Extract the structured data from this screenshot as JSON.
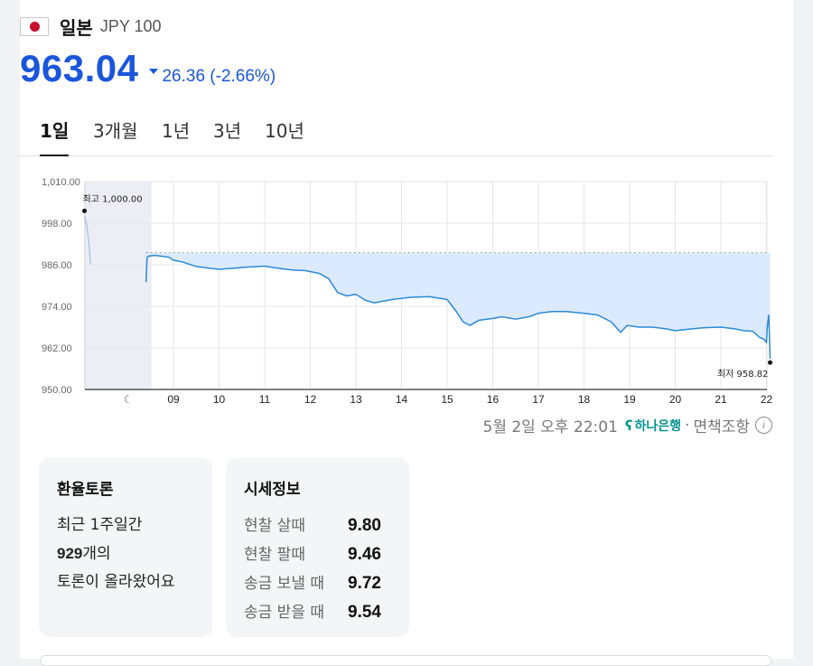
{
  "currency": {
    "name": "일본",
    "code": "JPY 100"
  },
  "price": {
    "value": "963.04",
    "change": "26.36 (-2.66%)",
    "color": "#1a56db"
  },
  "tabs": [
    "1일",
    "3개월",
    "1년",
    "3년",
    "10년"
  ],
  "source": {
    "datetime": "5월 2일 오후 22:01",
    "bank": "하나은행",
    "disclaimer": "면책조항"
  },
  "discussion": {
    "title": "환율토론",
    "line1": "최근 1주일간",
    "count": "929",
    "line2_suffix": "개의",
    "line3": "토론이 올라왔어요"
  },
  "quotes": {
    "title": "시세정보",
    "items": [
      {
        "label": "현찰 살때",
        "value": "9.80"
      },
      {
        "label": "현찰 팔때",
        "value": "9.46"
      },
      {
        "label": "송금 보낼 때",
        "value": "9.72"
      },
      {
        "label": "송금 받을 때",
        "value": "9.54"
      }
    ]
  },
  "chart_data": {
    "type": "line",
    "y_ticks": [
      "1,010.00",
      "998.00",
      "986.00",
      "974.00",
      "962.00",
      "950.00"
    ],
    "ylim": [
      950,
      1010
    ],
    "x_ticks": [
      "09",
      "10",
      "11",
      "12",
      "13",
      "14",
      "15",
      "16",
      "17",
      "18",
      "19",
      "20",
      "21",
      "22"
    ],
    "high_label": "최고 1,000.00",
    "low_label": "최저 958.82",
    "baseline": 989.4,
    "x": [
      7.05,
      7.1,
      7.15,
      7.18,
      8.4,
      8.42,
      8.46,
      8.6,
      8.9,
      9.0,
      9.2,
      9.5,
      9.8,
      10.0,
      10.3,
      10.6,
      11.0,
      11.3,
      11.6,
      11.9,
      12.2,
      12.4,
      12.6,
      12.8,
      13.0,
      13.2,
      13.4,
      13.8,
      14.2,
      14.6,
      15.0,
      15.2,
      15.35,
      15.5,
      15.7,
      16.0,
      16.2,
      16.5,
      16.8,
      17.0,
      17.3,
      17.6,
      18.0,
      18.3,
      18.6,
      18.8,
      18.95,
      19.2,
      19.5,
      19.8,
      20.0,
      20.3,
      20.6,
      21.0,
      21.3,
      21.5,
      21.7,
      21.85,
      21.95,
      22.0,
      22.02,
      22.05,
      22.08
    ],
    "y": [
      1000.0,
      997.5,
      992.0,
      986.0,
      981.0,
      988.0,
      988.5,
      988.7,
      988.2,
      987.3,
      986.8,
      985.5,
      985.0,
      984.7,
      985.0,
      985.3,
      985.6,
      985.0,
      984.5,
      984.3,
      983.5,
      982.0,
      978.0,
      977.0,
      977.5,
      975.8,
      975.0,
      976.0,
      976.6,
      976.8,
      976.0,
      972.5,
      969.5,
      968.5,
      970.0,
      970.5,
      971.0,
      970.3,
      971.0,
      972.0,
      972.5,
      972.5,
      972.0,
      971.5,
      969.5,
      966.5,
      968.5,
      968.0,
      968.0,
      967.5,
      967.0,
      967.4,
      967.8,
      968.0,
      967.5,
      967.0,
      966.8,
      965.0,
      964.5,
      963.5,
      968.5,
      971.5,
      958.82
    ],
    "night_shade_start": 7.0,
    "night_shade_end": 8.4
  }
}
